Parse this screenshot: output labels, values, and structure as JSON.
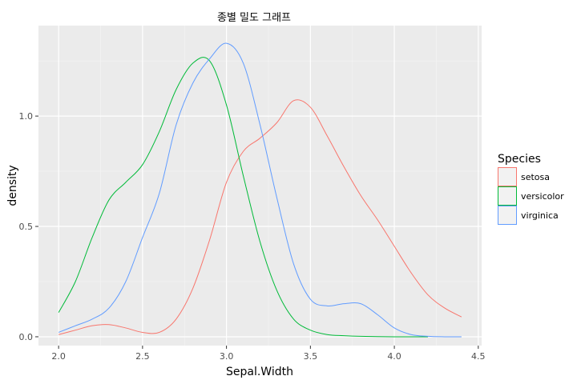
{
  "chart_data": {
    "type": "line",
    "title": "종별 밀도 그래프",
    "xlabel": "Sepal.Width",
    "ylabel": "density",
    "xlim": [
      1.88,
      4.52
    ],
    "ylim": [
      -0.04,
      1.41
    ],
    "xticks": [
      2.0,
      2.5,
      3.0,
      3.5,
      4.0,
      4.5
    ],
    "xtick_labels": [
      "2.0",
      "2.5",
      "3.0",
      "3.5",
      "4.0",
      "4.5"
    ],
    "yticks": [
      0.0,
      0.5,
      1.0
    ],
    "ytick_labels": [
      "0.0",
      "0.5",
      "1.0"
    ],
    "grid": true,
    "legend": {
      "title": "Species",
      "position": "right"
    },
    "series": [
      {
        "name": "setosa",
        "color": "#F8766D",
        "x": [
          2.0,
          2.1,
          2.2,
          2.3,
          2.4,
          2.5,
          2.6,
          2.7,
          2.8,
          2.9,
          3.0,
          3.1,
          3.2,
          3.3,
          3.4,
          3.5,
          3.6,
          3.7,
          3.8,
          3.9,
          4.0,
          4.1,
          4.2,
          4.3,
          4.4
        ],
        "y": [
          0.01,
          0.03,
          0.05,
          0.055,
          0.04,
          0.02,
          0.02,
          0.08,
          0.22,
          0.44,
          0.7,
          0.84,
          0.9,
          0.97,
          1.07,
          1.04,
          0.91,
          0.77,
          0.64,
          0.53,
          0.41,
          0.29,
          0.19,
          0.13,
          0.09
        ]
      },
      {
        "name": "versicolor",
        "color": "#00BA38",
        "x": [
          2.0,
          2.1,
          2.2,
          2.3,
          2.4,
          2.5,
          2.6,
          2.7,
          2.8,
          2.9,
          3.0,
          3.1,
          3.2,
          3.3,
          3.4,
          3.5,
          3.6,
          3.7,
          3.8,
          3.9,
          4.0,
          4.1,
          4.2
        ],
        "y": [
          0.11,
          0.25,
          0.45,
          0.62,
          0.7,
          0.78,
          0.93,
          1.12,
          1.24,
          1.25,
          1.05,
          0.73,
          0.43,
          0.21,
          0.08,
          0.03,
          0.01,
          0.005,
          0.002,
          0.001,
          0.0,
          0.0,
          0.0
        ]
      },
      {
        "name": "virginica",
        "color": "#619CFF",
        "x": [
          2.0,
          2.1,
          2.2,
          2.3,
          2.4,
          2.5,
          2.6,
          2.7,
          2.8,
          2.9,
          3.0,
          3.1,
          3.2,
          3.3,
          3.4,
          3.5,
          3.6,
          3.7,
          3.8,
          3.9,
          4.0,
          4.1,
          4.2,
          4.3,
          4.4
        ],
        "y": [
          0.02,
          0.05,
          0.08,
          0.13,
          0.25,
          0.45,
          0.65,
          0.96,
          1.15,
          1.26,
          1.33,
          1.24,
          0.96,
          0.63,
          0.33,
          0.17,
          0.14,
          0.15,
          0.15,
          0.1,
          0.04,
          0.01,
          0.002,
          0.0,
          0.0
        ]
      }
    ]
  }
}
